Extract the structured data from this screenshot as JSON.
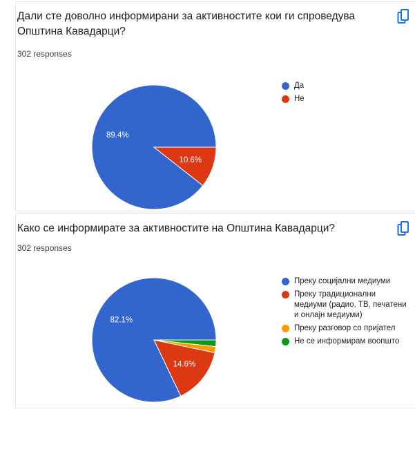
{
  "questions": [
    {
      "title": "Дали сте доволно информирани за активностите кои ги спроведува Општина Кавадарци?",
      "responses": "302 responses"
    },
    {
      "title": "Како се информирате за активностите на Општина Кавадарци?",
      "responses": "302 responses"
    }
  ],
  "icons": {
    "copy": "copy-chart-icon"
  },
  "chart_data": [
    {
      "type": "pie",
      "title": "Дали сте доволно информирани за активностите кои ги спроведува Општина Кавадарци?",
      "legend_position": "right",
      "slices": [
        {
          "label": "Да",
          "value": 89.4,
          "display": "89.4%",
          "color": "#3366cc"
        },
        {
          "label": "Не",
          "value": 10.6,
          "display": "10.6%",
          "color": "#dc3912"
        }
      ]
    },
    {
      "type": "pie",
      "title": "Како се информирате за активностите на Општина Кавадарци?",
      "legend_position": "right",
      "slices": [
        {
          "label": "Преку социјални медиуми",
          "value": 82.1,
          "display": "82.1%",
          "color": "#3366cc"
        },
        {
          "label": "Преку традиционални медиуми (радио, ТВ, печатени и онлајн медиуми)",
          "value": 14.6,
          "display": "14.6%",
          "color": "#dc3912"
        },
        {
          "label": "Преку разговор со пријател",
          "value": 1.6,
          "display": "",
          "color": "#ff9900"
        },
        {
          "label": "Не се информирам воопшто",
          "value": 1.7,
          "display": "",
          "color": "#109618"
        }
      ]
    }
  ]
}
